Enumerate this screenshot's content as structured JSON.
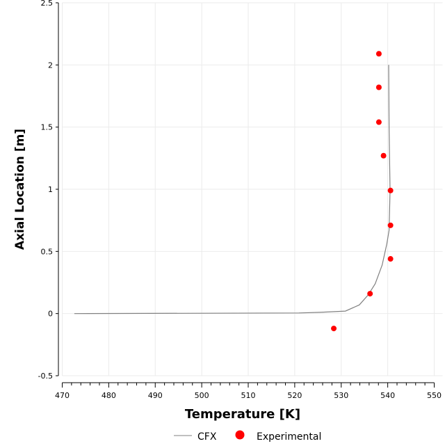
{
  "chart_data": {
    "type": "scatter",
    "title": "",
    "xlabel": "Temperature [K]",
    "ylabel": "Axial Location [m]",
    "xlim": [
      470,
      550
    ],
    "ylim": [
      -0.5,
      2.5
    ],
    "xticks": [
      470,
      480,
      490,
      500,
      510,
      520,
      530,
      540,
      550
    ],
    "yticks": [
      -0.5,
      0,
      0.5,
      1,
      1.5,
      2,
      2.5
    ],
    "xtick_labels": [
      "470",
      "480",
      "490",
      "500",
      "510",
      "520",
      "530",
      "540",
      "550"
    ],
    "ytick_labels": [
      "-0.5",
      "0",
      "0.5",
      "1",
      "1.5",
      "2",
      "2.5"
    ],
    "grid": true,
    "legend_position": "bottom",
    "series": [
      {
        "name": "CFX",
        "kind": "line",
        "color": "#808080",
        "x": [
          472.6,
          520.9,
          525.4,
          530.9,
          533.9,
          535.8,
          537.3,
          538.8,
          539.8,
          540.3,
          540.5,
          540.3,
          540.2
        ],
        "y": [
          0,
          0.005,
          0.01,
          0.02,
          0.07,
          0.15,
          0.24,
          0.39,
          0.56,
          0.67,
          0.99,
          1.495,
          2.0
        ]
      },
      {
        "name": "Experimental",
        "kind": "scatter",
        "color": "#ff0000",
        "x": [
          538.1,
          538.1,
          538.1,
          539.1,
          540.6,
          540.6,
          540.6,
          536.2,
          528.4
        ],
        "y": [
          2.09,
          1.82,
          1.54,
          1.27,
          0.99,
          0.71,
          0.44,
          0.16,
          -0.12
        ]
      }
    ]
  }
}
